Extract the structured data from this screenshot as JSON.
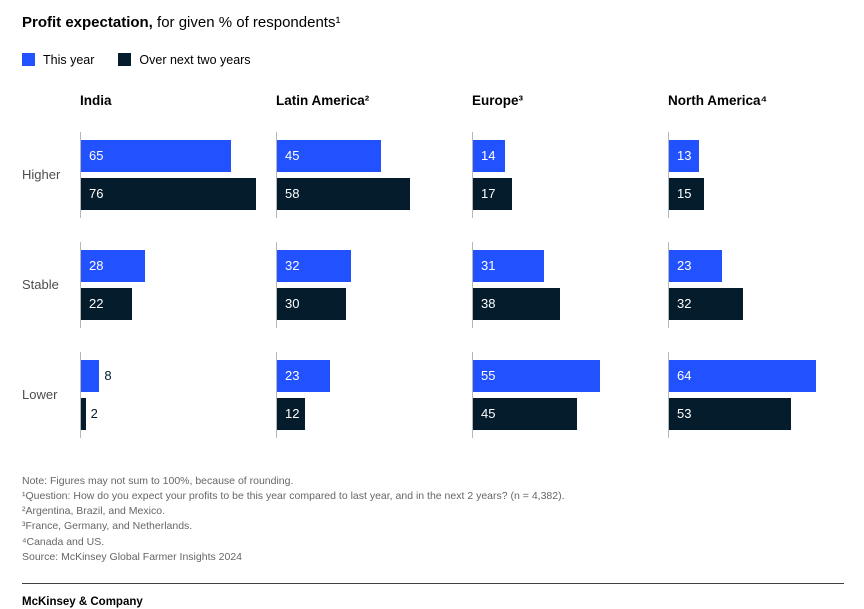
{
  "header": {
    "title_bold": "Profit expectation,",
    "title_rest": " for given % of respondents¹"
  },
  "legend": [
    {
      "label": "This year",
      "color": "#2251FF"
    },
    {
      "label": "Over next two years",
      "color": "#051C2C"
    }
  ],
  "chart_data": {
    "type": "bar",
    "orientation": "horizontal",
    "unit": "% of respondents",
    "row_labels": [
      "Higher",
      "Stable",
      "Lower"
    ],
    "series_names": [
      "This year",
      "Over next two years"
    ],
    "series_colors": [
      "#2251FF",
      "#051C2C"
    ],
    "groups": [
      {
        "name": "India",
        "rows": [
          [
            65,
            76
          ],
          [
            28,
            22
          ],
          [
            8,
            2
          ]
        ]
      },
      {
        "name": "Latin America²",
        "rows": [
          [
            45,
            58
          ],
          [
            32,
            30
          ],
          [
            23,
            12
          ]
        ]
      },
      {
        "name": "Europe³",
        "rows": [
          [
            14,
            17
          ],
          [
            31,
            38
          ],
          [
            55,
            45
          ]
        ]
      },
      {
        "name": "North America⁴",
        "rows": [
          [
            13,
            15
          ],
          [
            23,
            32
          ],
          [
            64,
            53
          ]
        ]
      }
    ],
    "xlim": [
      0,
      100
    ],
    "legend_position": "top-left",
    "grid": false
  },
  "notes": [
    "Note: Figures may not sum to 100%, because of rounding.",
    "¹Question: How do you expect your profits to be this year compared to last year, and in the next 2 years? (n = 4,382).",
    "²Argentina, Brazil, and Mexico.",
    "³France, Germany, and Netherlands.",
    "⁴Canada and US.",
    "Source: McKinsey Global Farmer Insights 2024"
  ],
  "footer": {
    "brand": "McKinsey & Company"
  }
}
